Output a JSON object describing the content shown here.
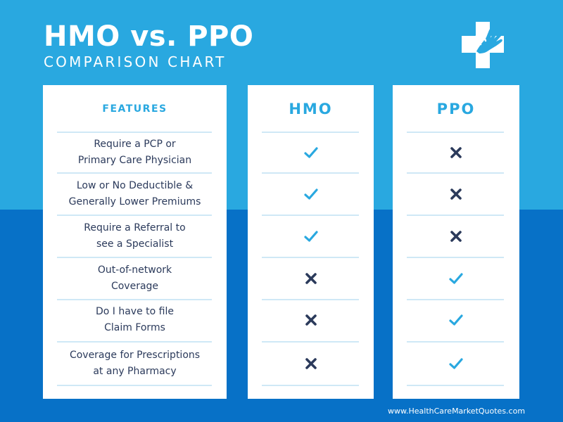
{
  "header": {
    "title": "HMO vs. PPO",
    "subtitle": "COMPARISON CHART",
    "logo_icon": "medical-cross-hands-icon"
  },
  "columns": {
    "features": "FEATURES",
    "hmo": "HMO",
    "ppo": "PPO"
  },
  "rows": [
    {
      "line1": "Require a PCP or",
      "line2": "Primary Care Physician",
      "hmo": "check",
      "ppo": "cross"
    },
    {
      "line1": "Low or No Deductible &",
      "line2": "Generally Lower Premiums",
      "hmo": "check",
      "ppo": "cross"
    },
    {
      "line1": "Require a Referral to",
      "line2": "see a Specialist",
      "hmo": "check",
      "ppo": "cross"
    },
    {
      "line1": "Out-of-network",
      "line2": "Coverage",
      "hmo": "cross",
      "ppo": "check"
    },
    {
      "line1": "Do I have to file",
      "line2": "Claim Forms",
      "hmo": "cross",
      "ppo": "check"
    },
    {
      "line1": "Coverage for Prescriptions",
      "line2": "at any Pharmacy",
      "hmo": "cross",
      "ppo": "check"
    }
  ],
  "colors": {
    "check": "#29a8e0",
    "cross": "#2b3a5b"
  },
  "footer": "www.HealthCareMarketQuotes.com"
}
